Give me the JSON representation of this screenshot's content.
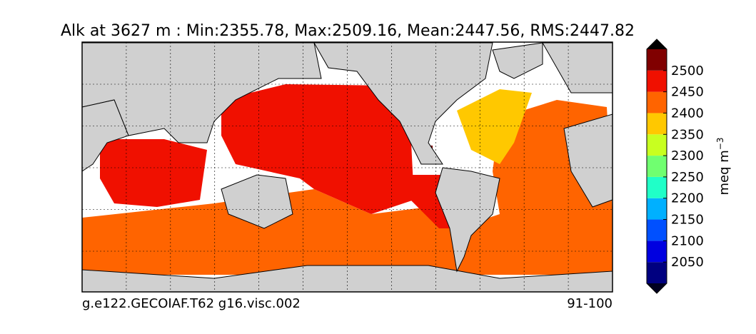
{
  "title": "Alk at 3627 m : Min:2355.78, Max:2509.16, Mean:2447.56, RMS:2447.82",
  "footer": {
    "left": "g.e122.GECOIAF.T62 g16.visc.002",
    "right": "91-100"
  },
  "colorbar": {
    "label": "meq m",
    "label_sup": "−3",
    "levels": [
      2000,
      2050,
      2100,
      2150,
      2200,
      2250,
      2300,
      2350,
      2400,
      2450,
      2500,
      2550
    ],
    "colors": [
      "#000080",
      "#0000e0",
      "#0050ff",
      "#00b0ff",
      "#20ffc8",
      "#70ff70",
      "#c8ff20",
      "#ffc800",
      "#ff6400",
      "#f01000",
      "#800000"
    ],
    "under_color": "#000020",
    "over_color": "#000000",
    "ticks": [
      2050,
      2100,
      2150,
      2200,
      2250,
      2300,
      2350,
      2400,
      2450,
      2500
    ]
  }
}
